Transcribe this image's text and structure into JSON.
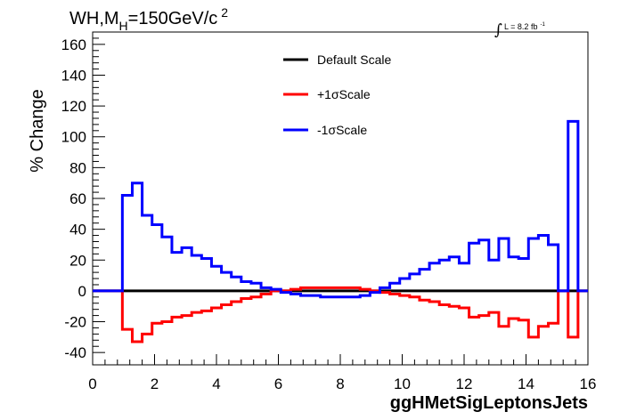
{
  "chart_data": {
    "type": "line",
    "title": "WH,M",
    "title_sub": "H",
    "title_rest": "=150GeV/c",
    "title_sup": "2",
    "lumi_label": "L = 8.2 fb",
    "lumi_sup": "-1",
    "xlabel": "ggHMetSigLeptonsJets",
    "ylabel": "% Change",
    "xlim": [
      0,
      16
    ],
    "ylim": [
      -48,
      168
    ],
    "x_ticks": [
      "0",
      "2",
      "4",
      "6",
      "8",
      "10",
      "12",
      "14",
      "16"
    ],
    "y_ticks": [
      "-40",
      "-20",
      "0",
      "20",
      "40",
      "60",
      "80",
      "100",
      "120",
      "140",
      "160"
    ],
    "bin_edges": [
      0,
      0.32,
      0.64,
      0.96,
      1.28,
      1.6,
      1.92,
      2.24,
      2.56,
      2.88,
      3.2,
      3.52,
      3.84,
      4.16,
      4.48,
      4.8,
      5.12,
      5.44,
      5.76,
      6.08,
      6.4,
      6.72,
      7.04,
      7.36,
      7.68,
      8.0,
      8.32,
      8.64,
      8.96,
      9.28,
      9.6,
      9.92,
      10.24,
      10.56,
      10.88,
      11.2,
      11.52,
      11.84,
      12.16,
      12.48,
      12.8,
      13.12,
      13.44,
      13.76,
      14.08,
      14.4,
      14.72,
      15.04,
      15.36,
      15.68,
      16.0
    ],
    "series": [
      {
        "name": "Default Scale",
        "color": "#000000",
        "values": [
          0,
          0,
          0,
          0,
          0,
          0,
          0,
          0,
          0,
          0,
          0,
          0,
          0,
          0,
          0,
          0,
          0,
          0,
          0,
          0,
          0,
          0,
          0,
          0,
          0,
          0,
          0,
          0,
          0,
          0,
          0,
          0,
          0,
          0,
          0,
          0,
          0,
          0,
          0,
          0,
          0,
          0,
          0,
          0,
          0,
          0,
          0,
          0,
          0,
          0
        ]
      },
      {
        "name": "+1σScale",
        "color": "#ff0000",
        "values": [
          0,
          0,
          0,
          -25,
          -33,
          -28,
          -21,
          -20,
          -17,
          -16,
          -14,
          -13,
          -11,
          -9,
          -7,
          -5,
          -4,
          -2,
          0,
          0,
          1,
          2,
          2,
          2,
          2,
          2,
          2,
          1,
          0,
          -1,
          -2,
          -3,
          -4,
          -6,
          -7,
          -9,
          -10,
          -11,
          -17,
          -16,
          -14,
          -23,
          -18,
          -19,
          -30,
          -23,
          -21,
          0,
          -30,
          0
        ]
      },
      {
        "name": "-1σScale",
        "color": "#0000ff",
        "values": [
          0,
          0,
          0,
          62,
          70,
          49,
          43,
          35,
          25,
          28,
          23,
          21,
          16,
          12,
          9,
          6,
          5,
          2,
          1,
          -1,
          -2,
          -3,
          -3,
          -4,
          -4,
          -4,
          -4,
          -3,
          -1,
          2,
          5,
          8,
          11,
          14,
          18,
          20,
          22,
          18,
          31,
          33,
          20,
          34,
          22,
          21,
          34,
          36,
          30,
          0,
          110,
          0
        ]
      }
    ],
    "legend_position": "top-center"
  }
}
